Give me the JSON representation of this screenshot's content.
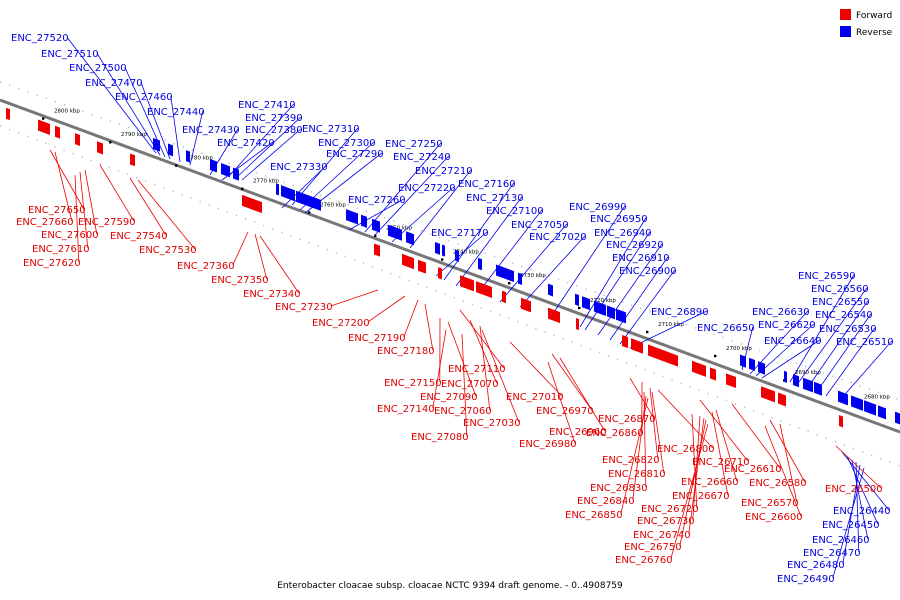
{
  "caption": "Enterobacter cloacae subsp. cloacae NCTC 9394 draft genome. - 0..4908759",
  "legend": [
    {
      "label": "Forward",
      "color": "#ee0000"
    },
    {
      "label": "Reverse",
      "color": "#0000ee"
    }
  ],
  "colors": {
    "forward": "#ee0000",
    "reverse": "#0000ee",
    "backbone": "#777777"
  },
  "scale_ticks": [
    "2800 kbp",
    "2790 kbp",
    "2780 kbp",
    "2770 kbp",
    "2760 kbp",
    "2750 kbp",
    "2740 kbp",
    "2730 kbp",
    "2720 kbp",
    "2710 kbp",
    "2700 kbp",
    "2690 kbp",
    "2680 kbp"
  ],
  "reverse_genes": [
    "ENC_27520",
    "ENC_27510",
    "ENC_27500",
    "ENC_27470",
    "ENC_27460",
    "ENC_27440",
    "ENC_27430",
    "ENC_27420",
    "ENC_27410",
    "ENC_27390",
    "ENC_27380",
    "ENC_27330",
    "ENC_27310",
    "ENC_27300",
    "ENC_27290",
    "ENC_27260",
    "ENC_27250",
    "ENC_27240",
    "ENC_27220",
    "ENC_27210",
    "ENC_27170",
    "ENC_27160",
    "ENC_27130",
    "ENC_27100",
    "ENC_27050",
    "ENC_27020",
    "ENC_26990",
    "ENC_26950",
    "ENC_26940",
    "ENC_26920",
    "ENC_26910",
    "ENC_26900",
    "ENC_26890",
    "ENC_26650",
    "ENC_26630",
    "ENC_26620",
    "ENC_26640",
    "ENC_26590",
    "ENC_26560",
    "ENC_26550",
    "ENC_26540",
    "ENC_26530",
    "ENC_26510",
    "ENC_26440",
    "ENC_26450",
    "ENC_26460",
    "ENC_26470",
    "ENC_26480",
    "ENC_26490"
  ],
  "forward_genes": [
    "ENC_27650",
    "ENC_27660",
    "ENC_27590",
    "ENC_27600",
    "ENC_27540",
    "ENC_27610",
    "ENC_27530",
    "ENC_27620",
    "ENC_27360",
    "ENC_27350",
    "ENC_27340",
    "ENC_27230",
    "ENC_27200",
    "ENC_27190",
    "ENC_27180",
    "ENC_27110",
    "ENC_27150",
    "ENC_27070",
    "ENC_27090",
    "ENC_27010",
    "ENC_27140",
    "ENC_27060",
    "ENC_26970",
    "ENC_27030",
    "ENC_26960",
    "ENC_27080",
    "ENC_26980",
    "ENC_26870",
    "ENC_26860",
    "ENC_26800",
    "ENC_26820",
    "ENC_26710",
    "ENC_26810",
    "ENC_26610",
    "ENC_26660",
    "ENC_26830",
    "ENC_26580",
    "ENC_26670",
    "ENC_26840",
    "ENC_26570",
    "ENC_26720",
    "ENC_26850",
    "ENC_26600",
    "ENC_26730",
    "ENC_26500",
    "ENC_26740",
    "ENC_26750",
    "ENC_26760"
  ]
}
